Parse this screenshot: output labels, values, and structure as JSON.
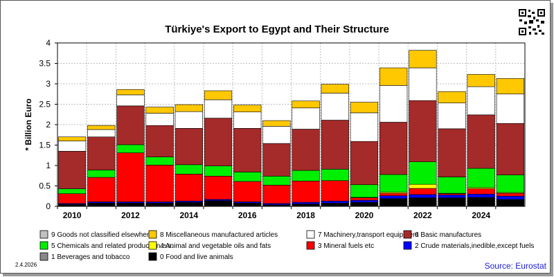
{
  "page": {
    "date": "2.4.2026",
    "source": "Source: Eurostat"
  },
  "chart_data": {
    "type": "bar",
    "stacked": true,
    "title": "Türkiye's Export to Egypt and Their Structure",
    "ylabel": "* Billion Euro",
    "xlabel": "",
    "ylim": [
      0,
      4
    ],
    "yticks": [
      0,
      0.5,
      1,
      1.5,
      2,
      2.5,
      3,
      3.5,
      4
    ],
    "ytick_labels": [
      "0",
      "0.5",
      "1",
      "1.5",
      "2",
      "2.5",
      "3",
      "3.5",
      "4"
    ],
    "categories": [
      "2010",
      "2011",
      "2012",
      "2013",
      "2014",
      "2015",
      "2016",
      "2017",
      "2018",
      "2019",
      "2020",
      "2021",
      "2022",
      "2023",
      "2024",
      "2025"
    ],
    "xtick_labels": [
      "2010",
      "",
      "2012",
      "",
      "2014",
      "",
      "2016",
      "",
      "2018",
      "",
      "2020",
      "",
      "2022",
      "",
      "2024",
      ""
    ],
    "grid": true,
    "legend_position": "bottom",
    "series": [
      {
        "name": "0 Food and live animals",
        "color": "#000000",
        "values": [
          0.05,
          0.08,
          0.08,
          0.08,
          0.1,
          0.14,
          0.08,
          0.04,
          0.06,
          0.08,
          0.1,
          0.18,
          0.2,
          0.2,
          0.21,
          0.16
        ]
      },
      {
        "name": "1 Beverages and tobacco",
        "color": "#888888",
        "values": [
          0.0,
          0.0,
          0.0,
          0.0,
          0.0,
          0.0,
          0.0,
          0.0,
          0.0,
          0.0,
          0.0,
          0.01,
          0.01,
          0.01,
          0.01,
          0.01
        ]
      },
      {
        "name": "2 Crude materials,inedible,except fuels",
        "color": "#0000ff",
        "values": [
          0.02,
          0.03,
          0.03,
          0.03,
          0.03,
          0.03,
          0.03,
          0.03,
          0.04,
          0.05,
          0.05,
          0.07,
          0.08,
          0.07,
          0.08,
          0.08
        ]
      },
      {
        "name": "3 Mineral fuels etc",
        "color": "#ff0000",
        "values": [
          0.24,
          0.6,
          1.2,
          0.9,
          0.66,
          0.57,
          0.5,
          0.45,
          0.52,
          0.5,
          0.06,
          0.06,
          0.15,
          0.03,
          0.13,
          0.07
        ]
      },
      {
        "name": "4 Animal and vegetable oils and fats",
        "color": "#ffff00",
        "values": [
          0.0,
          0.0,
          0.0,
          0.0,
          0.0,
          0.0,
          0.0,
          0.0,
          0.0,
          0.0,
          0.01,
          0.03,
          0.1,
          0.01,
          0.03,
          0.02
        ]
      },
      {
        "name": "5 Chemicals and related products,n.e.s.",
        "color": "#00ee00",
        "values": [
          0.12,
          0.18,
          0.2,
          0.2,
          0.23,
          0.25,
          0.23,
          0.22,
          0.26,
          0.28,
          0.31,
          0.43,
          0.55,
          0.4,
          0.47,
          0.43
        ]
      },
      {
        "name": "6 Basic manufactures",
        "color": "#a52a2a",
        "values": [
          0.92,
          0.81,
          0.95,
          0.77,
          0.89,
          1.17,
          1.07,
          0.8,
          1.01,
          1.2,
          1.06,
          1.28,
          1.5,
          1.18,
          1.31,
          1.26
        ]
      },
      {
        "name": "7 Machinery,transport equipment",
        "color": "#ffffff",
        "values": [
          0.25,
          0.18,
          0.27,
          0.3,
          0.41,
          0.45,
          0.4,
          0.42,
          0.52,
          0.66,
          0.7,
          0.9,
          0.8,
          0.63,
          0.69,
          0.72
        ]
      },
      {
        "name": "8 Miscellaneous manufactured articles",
        "color": "#ffc800",
        "values": [
          0.1,
          0.1,
          0.13,
          0.15,
          0.17,
          0.22,
          0.17,
          0.14,
          0.17,
          0.22,
          0.26,
          0.43,
          0.43,
          0.28,
          0.3,
          0.38
        ]
      },
      {
        "name": "9 Goods not classified elsewhere",
        "color": "#c0c0c0",
        "values": [
          0.0,
          0.0,
          0.0,
          0.0,
          0.0,
          0.0,
          0.0,
          0.0,
          0.0,
          0.0,
          0.0,
          0.0,
          0.0,
          0.0,
          0.0,
          0.0
        ]
      }
    ],
    "legend_order": [
      9,
      8,
      7,
      6,
      5,
      4,
      3,
      2,
      1,
      0
    ]
  }
}
